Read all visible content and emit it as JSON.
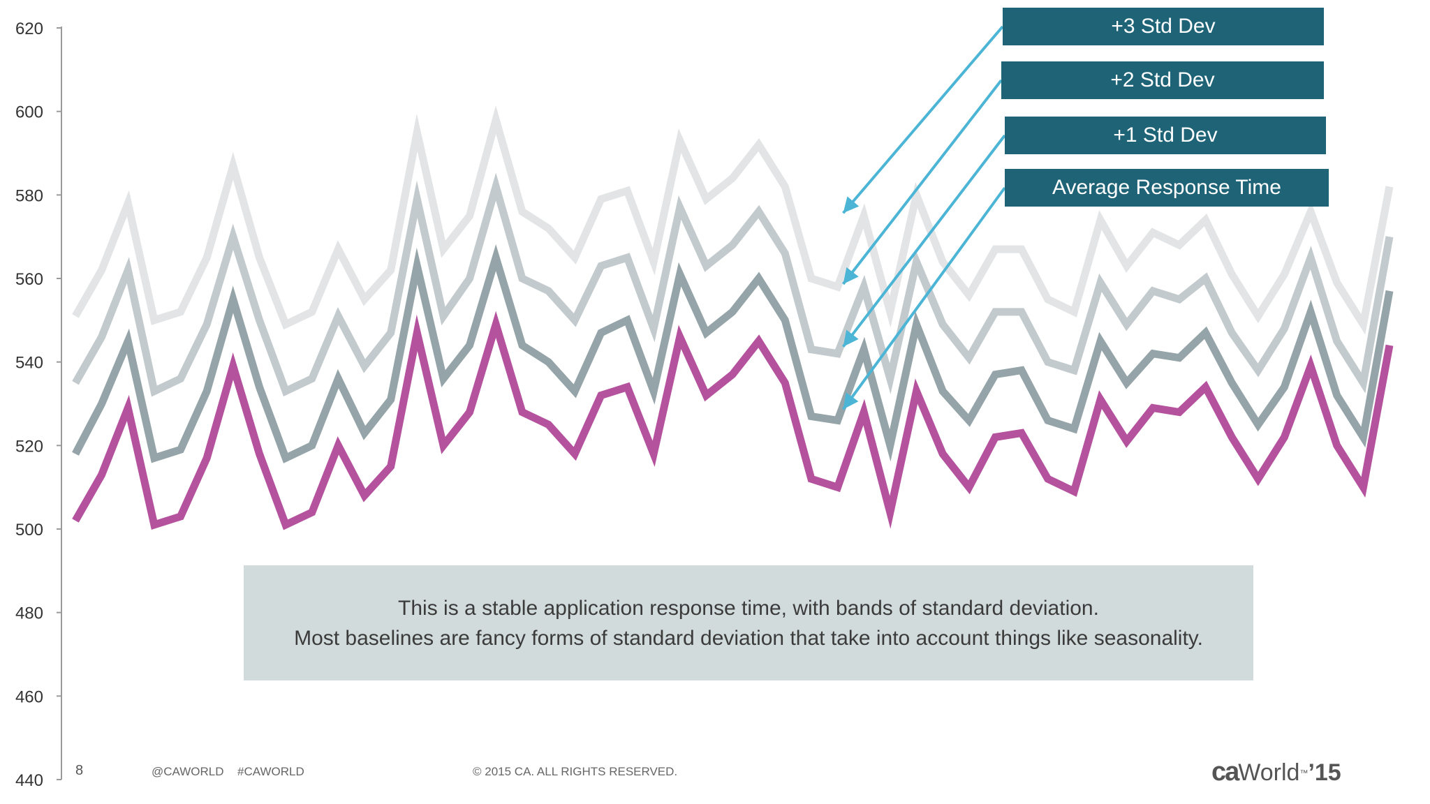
{
  "colors": {
    "std3": "#e2e4e5",
    "std2": "#c3cacd",
    "std1": "#95a4a8",
    "avg": "#b5529e",
    "axis": "#9a9a9a",
    "legend_bg": "#1f6377",
    "callout_bg": "#d2dbdb",
    "arrow": "#4cb5d5"
  },
  "chart_data": {
    "type": "line",
    "ylim": [
      440,
      620
    ],
    "yticks": [
      620,
      600,
      580,
      560,
      540,
      520,
      500,
      480,
      460,
      440
    ],
    "xlabel": "",
    "ylabel": "",
    "grid": false,
    "series": [
      {
        "name": "+3 Std Dev",
        "color_key": "std3",
        "values": [
          551,
          562,
          578,
          550,
          552,
          565,
          587,
          565,
          549,
          552,
          567,
          555,
          562,
          595,
          567,
          575,
          598,
          576,
          572,
          565,
          579,
          581,
          564,
          593,
          579,
          584,
          592,
          582,
          560,
          558,
          575,
          552,
          580,
          564,
          556,
          567,
          567,
          555,
          552,
          574,
          563,
          571,
          568,
          574,
          561,
          551,
          561,
          576,
          559,
          549,
          582
        ]
      },
      {
        "name": "+2 Std Dev",
        "color_key": "std2",
        "values": [
          535,
          546,
          562,
          533,
          536,
          549,
          570,
          550,
          533,
          536,
          551,
          539,
          547,
          579,
          551,
          560,
          582,
          560,
          557,
          550,
          563,
          565,
          548,
          577,
          563,
          568,
          576,
          566,
          543,
          542,
          558,
          536,
          564,
          549,
          541,
          552,
          552,
          540,
          538,
          559,
          549,
          557,
          555,
          560,
          547,
          538,
          548,
          565,
          545,
          535,
          570
        ]
      },
      {
        "name": "+1 Std Dev",
        "color_key": "std1",
        "values": [
          518,
          530,
          545,
          517,
          519,
          533,
          555,
          534,
          517,
          520,
          536,
          523,
          531,
          563,
          536,
          544,
          565,
          544,
          540,
          533,
          547,
          550,
          533,
          561,
          547,
          552,
          560,
          550,
          527,
          526,
          543,
          520,
          549,
          533,
          526,
          537,
          538,
          526,
          524,
          545,
          535,
          542,
          541,
          547,
          535,
          525,
          534,
          552,
          532,
          522,
          557
        ]
      },
      {
        "name": "Average Response Time",
        "color_key": "avg",
        "values": [
          502,
          513,
          529,
          501,
          503,
          517,
          539,
          518,
          501,
          504,
          520,
          508,
          515,
          547,
          520,
          528,
          549,
          528,
          525,
          518,
          532,
          534,
          518,
          546,
          532,
          537,
          545,
          535,
          512,
          510,
          528,
          504,
          533,
          518,
          510,
          522,
          523,
          512,
          509,
          531,
          521,
          529,
          528,
          534,
          522,
          512,
          522,
          539,
          520,
          510,
          544
        ]
      }
    ]
  },
  "legend": {
    "std3": "+3 Std Dev",
    "std2": "+2 Std Dev",
    "std1": "+1 Std Dev",
    "avg": "Average Response Time"
  },
  "callout": {
    "line1": "This is a stable application response time, with bands of standard deviation.",
    "line2": "Most baselines are fancy forms of standard deviation that take into account  things like seasonality."
  },
  "footer": {
    "page_number": "8",
    "handle": "@CAWORLD",
    "hashtag": "#CAWORLD",
    "copyright": "© 2015 CA. ALL RIGHTS RESERVED."
  },
  "logo": {
    "ca": "ca",
    "world": "World",
    "tm": "™",
    "year": "’15"
  }
}
